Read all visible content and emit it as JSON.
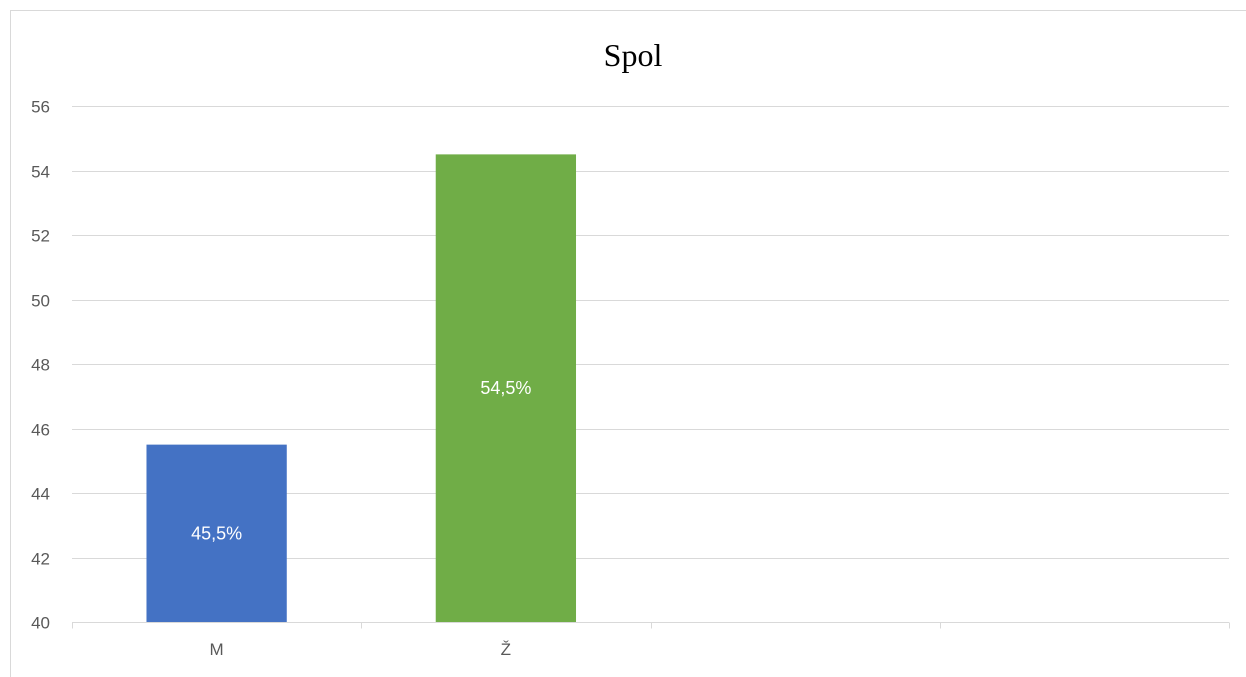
{
  "chart_data": {
    "type": "bar",
    "title": "Spol",
    "categories": [
      "M",
      "Ž",
      "",
      ""
    ],
    "values": [
      45.5,
      54.5,
      null,
      null
    ],
    "data_labels": [
      "45,5%",
      "54,5%",
      "",
      ""
    ],
    "colors": [
      "#4472c4",
      "#70ad47"
    ],
    "ylim": [
      40,
      56
    ],
    "yticks": [
      40,
      42,
      44,
      46,
      48,
      50,
      52,
      54,
      56
    ],
    "grid": true,
    "legend": "none"
  }
}
